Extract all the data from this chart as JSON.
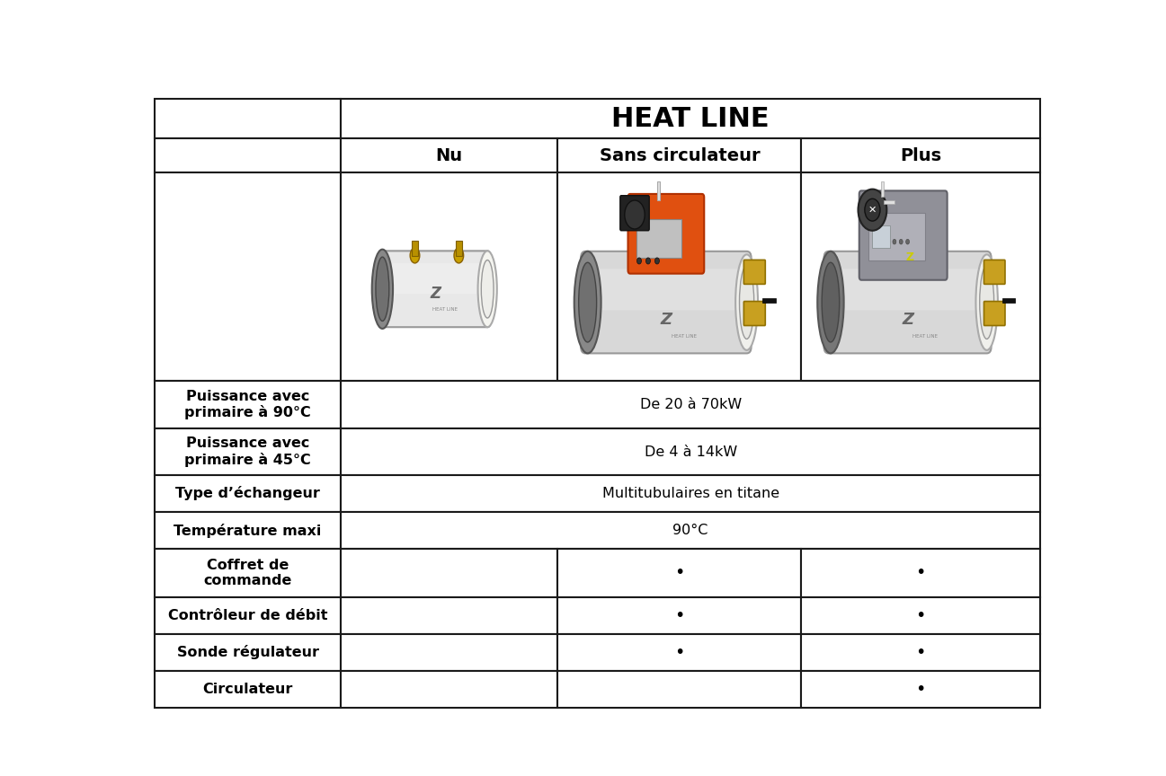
{
  "title": "HEAT LINE",
  "columns": [
    "Nu",
    "Sans circulateur",
    "Plus"
  ],
  "rows": [
    {
      "label": "Puissance avec\nprimaire à 90°C",
      "values": [
        "De 20 à 70kW"
      ],
      "span": true
    },
    {
      "label": "Puissance avec\nprimaire à 45°C",
      "values": [
        "De 4 à 14kW"
      ],
      "span": true
    },
    {
      "label": "Type d’échangeur",
      "values": [
        "Multitubulaires en titane"
      ],
      "span": true
    },
    {
      "label": "Température maxi",
      "values": [
        "90°C"
      ],
      "span": true
    },
    {
      "label": "Coffret de\ncommande",
      "values": [
        "",
        "•",
        "•"
      ],
      "span": false
    },
    {
      "label": "Contrôleur de débit",
      "values": [
        "",
        "•",
        "•"
      ],
      "span": false
    },
    {
      "label": "Sonde régulateur",
      "values": [
        "",
        "•",
        "•"
      ],
      "span": false
    },
    {
      "label": "Circulateur",
      "values": [
        "",
        "",
        "•"
      ],
      "span": false
    }
  ],
  "border_color": "#1a1a1a",
  "label_fontsize": 11.5,
  "value_fontsize": 11.5,
  "title_fontsize": 22,
  "header_fontsize": 14,
  "bullet_fontsize": 14
}
